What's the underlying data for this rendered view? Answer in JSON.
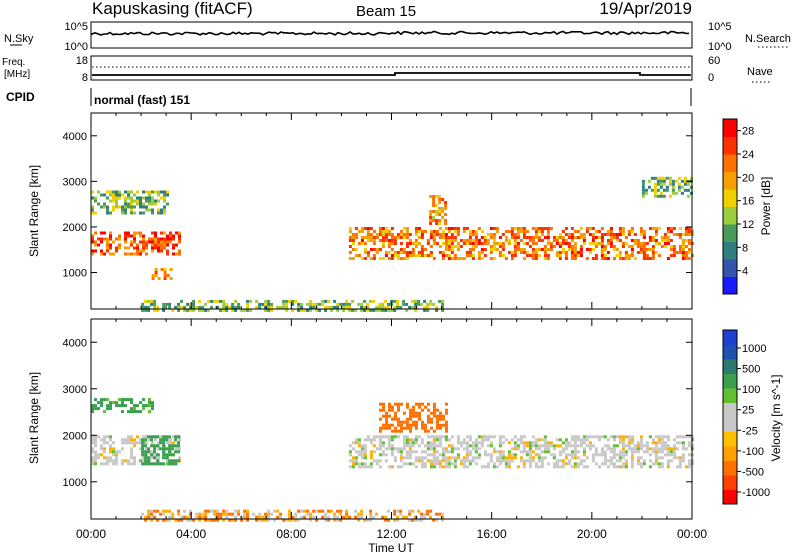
{
  "header": {
    "station": "Kapuskasing (fitACF)",
    "beam": "Beam 15",
    "date": "19/Apr/2019"
  },
  "nsky_panel": {
    "left_label": "N.Sky",
    "right_label": "N.Search",
    "left_ticks": [
      "10^5",
      "10^0"
    ],
    "right_ticks": [
      "10^5",
      "10^0"
    ]
  },
  "freq_panel": {
    "left_label_line1": "Freq.",
    "left_label_line2": "[MHz]",
    "right_label": "Nave",
    "left_ticks": [
      "18",
      "8"
    ],
    "right_ticks": [
      "60",
      "0"
    ]
  },
  "cpid_panel": {
    "label": "CPID",
    "mode": "normal (fast) 151"
  },
  "colors": {
    "power": [
      "#1a1aff",
      "#3355aa",
      "#2f7f80",
      "#4a9a5a",
      "#9ccc40",
      "#f0d000",
      "#f5a000",
      "#ff7000",
      "#ff3000",
      "#ff0000"
    ],
    "velocity": [
      "#ff0000",
      "#ff5000",
      "#ff9000",
      "#ffc000",
      "#c8c8c8",
      "#c8c8c8",
      "#60c030",
      "#3aa060",
      "#2060a0",
      "#2040c0"
    ]
  },
  "chart_data": [
    {
      "type": "heatmap",
      "name": "power-panel",
      "xlabel": "",
      "ylabel": "Slant Range [km]",
      "x_ticks": [
        "00:00",
        "04:00",
        "08:00",
        "12:00",
        "16:00",
        "20:00",
        "00:00"
      ],
      "y_ticks": [
        1000,
        2000,
        3000,
        4000
      ],
      "ylim": [
        200,
        4500
      ],
      "colorbar_label": "Power [dB]",
      "colorbar_ticks": [
        4,
        8,
        12,
        16,
        20,
        24,
        28
      ],
      "colorbar_range": [
        0,
        30
      ],
      "regions": [
        {
          "t": [
            0.0,
            3.5
          ],
          "r": [
            1400,
            1900
          ],
          "value": 24
        },
        {
          "t": [
            0.0,
            3.0
          ],
          "r": [
            2300,
            2800
          ],
          "value": 12
        },
        {
          "t": [
            2.3,
            3.2
          ],
          "r": [
            900,
            1100
          ],
          "value": 20
        },
        {
          "t": [
            10.3,
            24.0
          ],
          "r": [
            1300,
            2000
          ],
          "value": 22
        },
        {
          "t": [
            13.5,
            14.2
          ],
          "r": [
            2100,
            2700
          ],
          "value": 20
        },
        {
          "t": [
            22.0,
            24.0
          ],
          "r": [
            2700,
            3100
          ],
          "value": 12
        },
        {
          "t": [
            2.0,
            14.0
          ],
          "r": [
            200,
            400
          ],
          "value": 12
        }
      ]
    },
    {
      "type": "heatmap",
      "name": "velocity-panel",
      "xlabel": "Time UT",
      "ylabel": "Slant Range [km]",
      "x_ticks": [
        "00:00",
        "04:00",
        "08:00",
        "12:00",
        "16:00",
        "20:00",
        "00:00"
      ],
      "y_ticks": [
        1000,
        2000,
        3000,
        4000
      ],
      "ylim": [
        200,
        4500
      ],
      "colorbar_label": "Velocity [m s^-1]",
      "colorbar_ticks": [
        1000,
        500,
        100,
        25,
        -25,
        -100,
        -500,
        -1000
      ],
      "regions": [
        {
          "t": [
            0.0,
            3.5
          ],
          "r": [
            1400,
            2000
          ],
          "value": 0
        },
        {
          "t": [
            2.0,
            3.5
          ],
          "r": [
            1400,
            2000
          ],
          "value": 300
        },
        {
          "t": [
            0.0,
            2.5
          ],
          "r": [
            2500,
            2800
          ],
          "value": 150
        },
        {
          "t": [
            11.5,
            14.2
          ],
          "r": [
            2100,
            2700
          ],
          "value": -400
        },
        {
          "t": [
            10.3,
            24.0
          ],
          "r": [
            1300,
            2000
          ],
          "value": 0
        },
        {
          "t": [
            2.0,
            14.0
          ],
          "r": [
            200,
            400
          ],
          "value": -80
        }
      ]
    }
  ]
}
